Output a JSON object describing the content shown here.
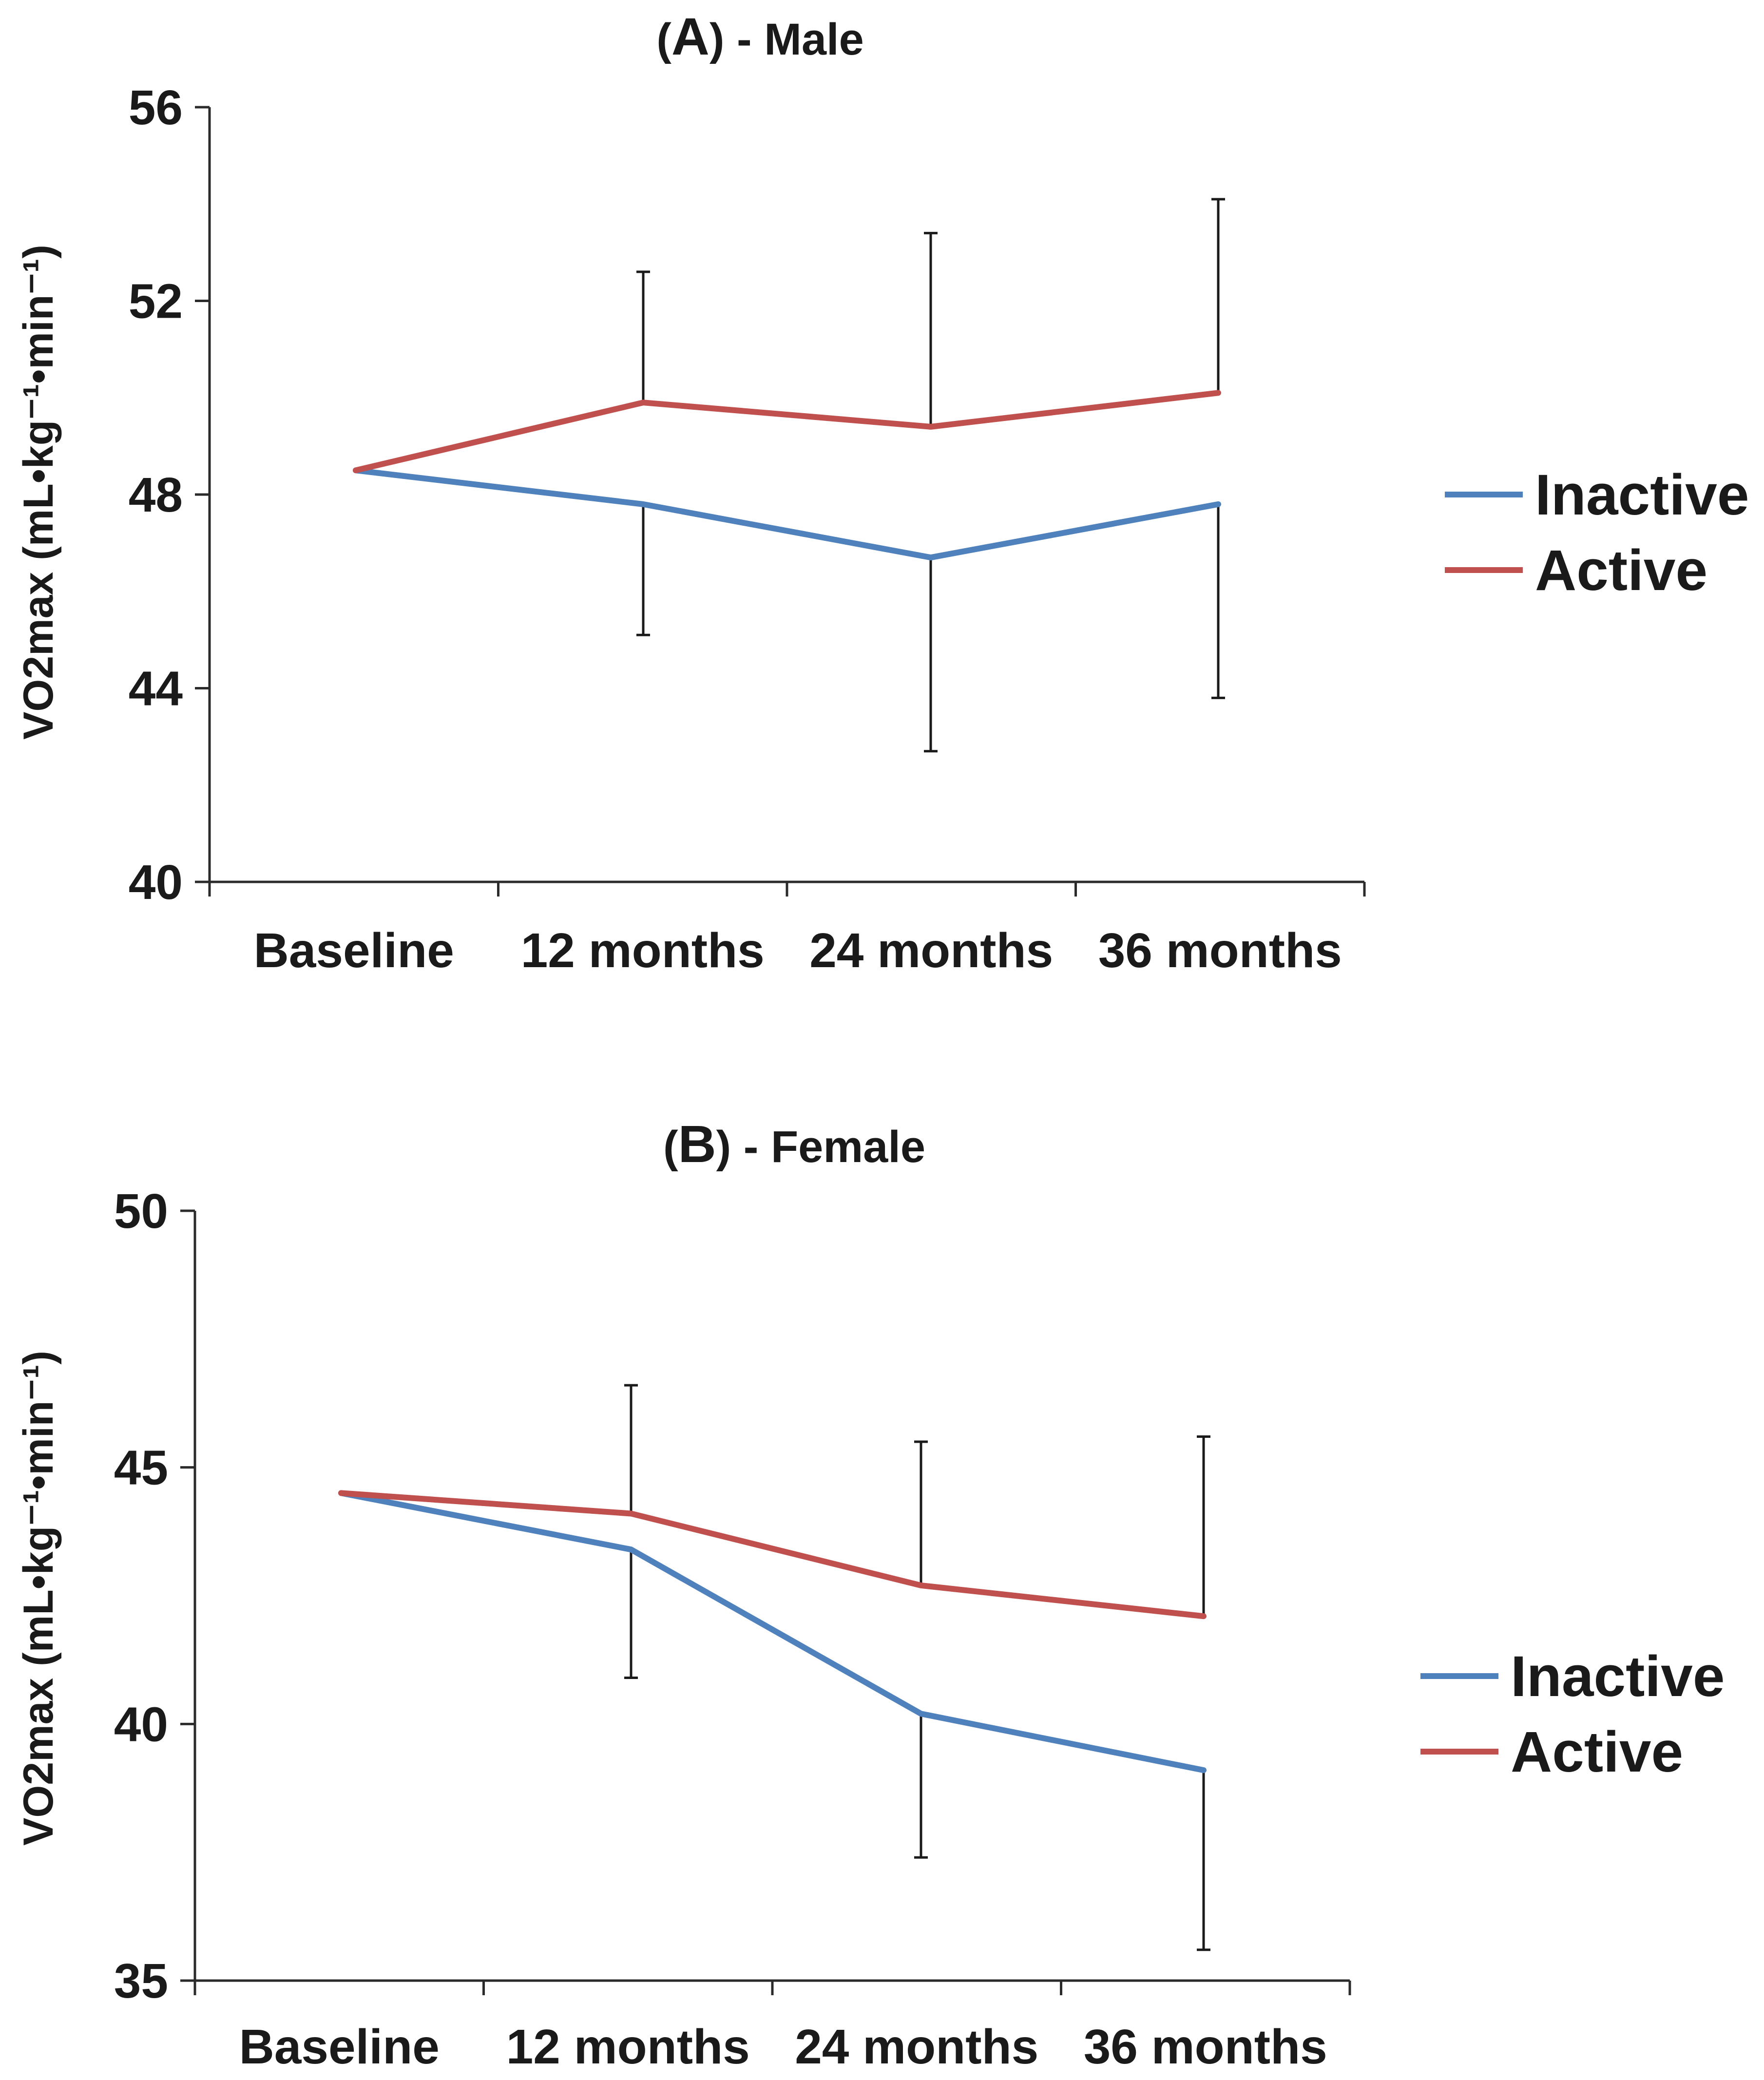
{
  "colors": {
    "inactive": "#4F81BD",
    "active": "#C0504D",
    "axis": "#2b2b2b"
  },
  "chart_data": [
    {
      "type": "line",
      "title_letter": "A",
      "title_prefix": "(",
      "title_suffix": ") - Male",
      "ylabel": "VO2max (mL•kg⁻¹•min⁻¹)",
      "xlabel": "",
      "categories": [
        "Baseline",
        "12 months",
        "24 months",
        "36 months"
      ],
      "ylim": [
        40,
        56
      ],
      "yticks": [
        40,
        44,
        48,
        52,
        56
      ],
      "legend_position": "right",
      "series": [
        {
          "name": "Inactive",
          "color_key": "inactive",
          "values": [
            48.5,
            47.8,
            46.7,
            47.8
          ],
          "error_lower": [
            0,
            2.7,
            4.0,
            4.0
          ],
          "error_upper": [
            0,
            0,
            0,
            0
          ]
        },
        {
          "name": "Active",
          "color_key": "active",
          "values": [
            48.5,
            49.9,
            49.4,
            50.1
          ],
          "error_lower": [
            0,
            0,
            0,
            0
          ],
          "error_upper": [
            0,
            2.7,
            4.0,
            4.0
          ]
        }
      ]
    },
    {
      "type": "line",
      "title_letter": "B",
      "title_prefix": "(",
      "title_suffix": ") - Female",
      "ylabel": "VO2max (mL•kg⁻¹•min⁻¹)",
      "xlabel": "",
      "categories": [
        "Baseline",
        "12 months",
        "24 months",
        "36 months"
      ],
      "ylim": [
        35,
        50
      ],
      "yticks": [
        35,
        40,
        45,
        50
      ],
      "legend_position": "right",
      "series": [
        {
          "name": "Inactive",
          "color_key": "inactive",
          "values": [
            44.5,
            43.4,
            40.2,
            39.1
          ],
          "error_lower": [
            0,
            2.5,
            2.8,
            3.5
          ],
          "error_upper": [
            0,
            0,
            0,
            0
          ]
        },
        {
          "name": "Active",
          "color_key": "active",
          "values": [
            44.5,
            44.1,
            42.7,
            42.1
          ],
          "error_lower": [
            0,
            0,
            0,
            0
          ],
          "error_upper": [
            0,
            2.5,
            2.8,
            3.5
          ]
        }
      ]
    }
  ]
}
